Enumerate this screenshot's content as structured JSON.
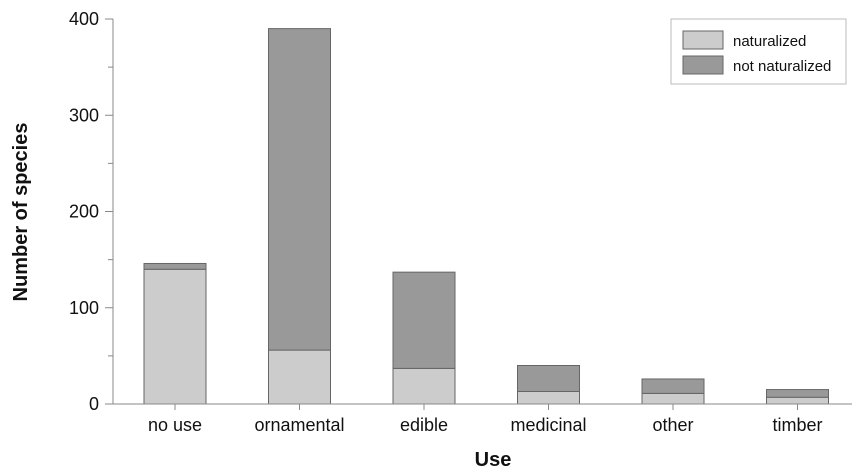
{
  "chart_data": {
    "type": "bar",
    "stacked": true,
    "categories": [
      "no use",
      "ornamental",
      "edible",
      "medicinal",
      "other",
      "timber"
    ],
    "series": [
      {
        "name": "naturalized",
        "values": [
          140,
          56,
          37,
          13,
          11,
          7
        ],
        "color": "#cccccc"
      },
      {
        "name": "not naturalized",
        "values": [
          6,
          334,
          100,
          27,
          15,
          8
        ],
        "color": "#999999"
      }
    ],
    "title": "",
    "xlabel": "Use",
    "ylabel": "Number of species",
    "ylim": [
      0,
      400
    ],
    "yticks": [
      "0",
      "100",
      "200",
      "300",
      "400"
    ],
    "grid": false,
    "legend_position": "top-right",
    "colors": {
      "axis": "#888888",
      "bar_edge": "#666666",
      "legend_border": "#bbbbbb"
    }
  }
}
